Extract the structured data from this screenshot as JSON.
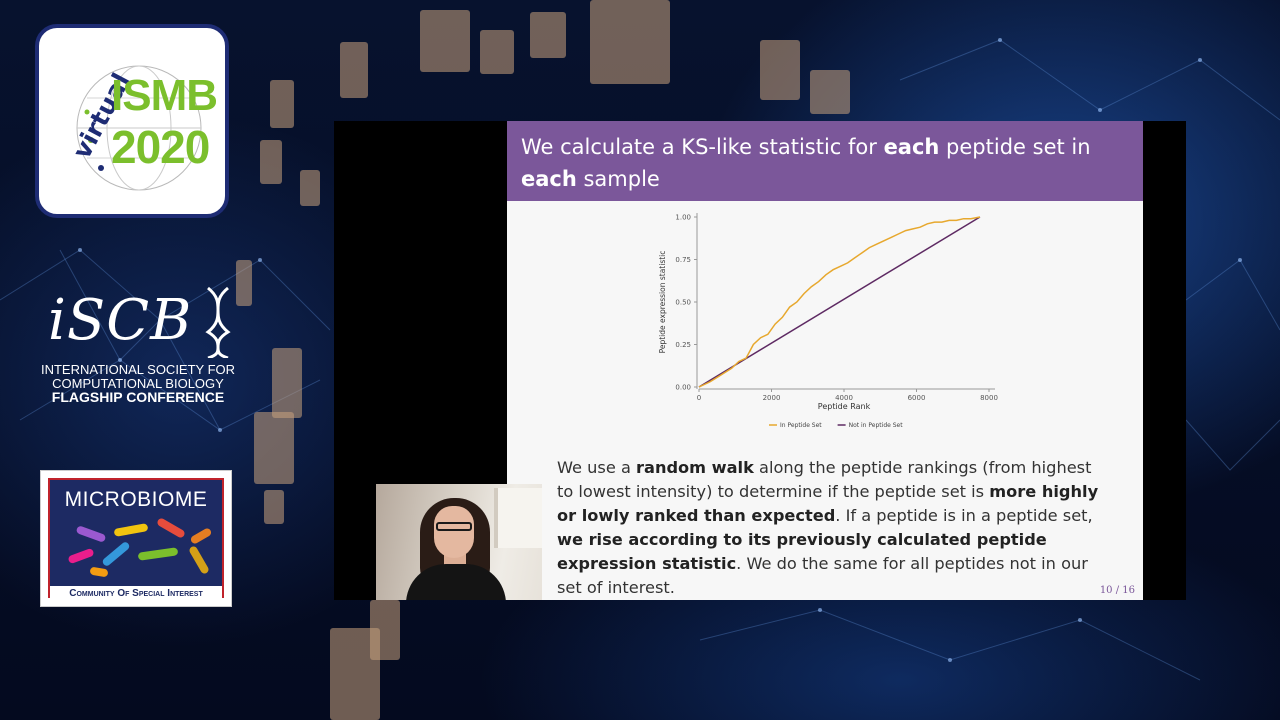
{
  "conference": {
    "virtual_label": "virtual",
    "name": "ISMB",
    "year": "2020"
  },
  "iscb": {
    "wordmark": "iSCB",
    "line1": "INTERNATIONAL SOCIETY FOR",
    "line2": "COMPUTATIONAL BIOLOGY",
    "line3": "FLAGSHIP CONFERENCE"
  },
  "microbiome": {
    "title": "MICROBIOME",
    "subtitle": "Community Of Special Interest"
  },
  "slide": {
    "title_pre": "We calculate a KS-like statistic for ",
    "title_b1": "each",
    "title_mid": " peptide set in ",
    "title_b2": "each",
    "title_post": " sample",
    "body": {
      "t1": "We use a ",
      "b1": "random walk",
      "t2": " along the peptide rankings (from highest to lowest intensity) to determine if the peptide set is ",
      "b2": "more highly or lowly ranked than expected",
      "t3": ". If a peptide is in a peptide set, ",
      "b3": "we rise according to its previously calculated peptide expression statistic",
      "t4": ". We do the same for all peptides not in our set of interest."
    },
    "page": "10 / 16"
  },
  "colors": {
    "header": "#7b579a",
    "in_set": "#e7a82e",
    "not_in_set": "#5e2a63"
  },
  "chart_data": {
    "type": "line",
    "xlabel": "Peptide Rank",
    "ylabel": "Peptide expression statistic",
    "xlim": [
      0,
      8000
    ],
    "ylim": [
      0,
      1
    ],
    "xticks": [
      "0",
      "2000",
      "4000",
      "6000",
      "8000"
    ],
    "yticks": [
      "0.00",
      "0.25",
      "0.50",
      "0.75",
      "1.00"
    ],
    "legend_position": "bottom",
    "series": [
      {
        "name": "In Peptide Set",
        "color": "#e7a82e",
        "x": [
          0,
          300,
          600,
          900,
          1100,
          1300,
          1500,
          1700,
          1900,
          2100,
          2300,
          2500,
          2700,
          2900,
          3100,
          3300,
          3500,
          3700,
          3900,
          4100,
          4300,
          4500,
          4700,
          4900,
          5100,
          5300,
          5500,
          5700,
          5900,
          6100,
          6300,
          6500,
          6700,
          6900,
          7100,
          7300,
          7500,
          7750
        ],
        "y": [
          0.0,
          0.03,
          0.07,
          0.11,
          0.15,
          0.17,
          0.25,
          0.29,
          0.31,
          0.37,
          0.41,
          0.47,
          0.5,
          0.55,
          0.59,
          0.62,
          0.66,
          0.69,
          0.71,
          0.73,
          0.76,
          0.79,
          0.82,
          0.84,
          0.86,
          0.88,
          0.9,
          0.92,
          0.93,
          0.94,
          0.96,
          0.97,
          0.97,
          0.98,
          0.98,
          0.99,
          0.99,
          1.0
        ]
      },
      {
        "name": "Not in Peptide Set",
        "color": "#5e2a63",
        "x": [
          0,
          7750
        ],
        "y": [
          0.0,
          1.0
        ]
      }
    ]
  }
}
